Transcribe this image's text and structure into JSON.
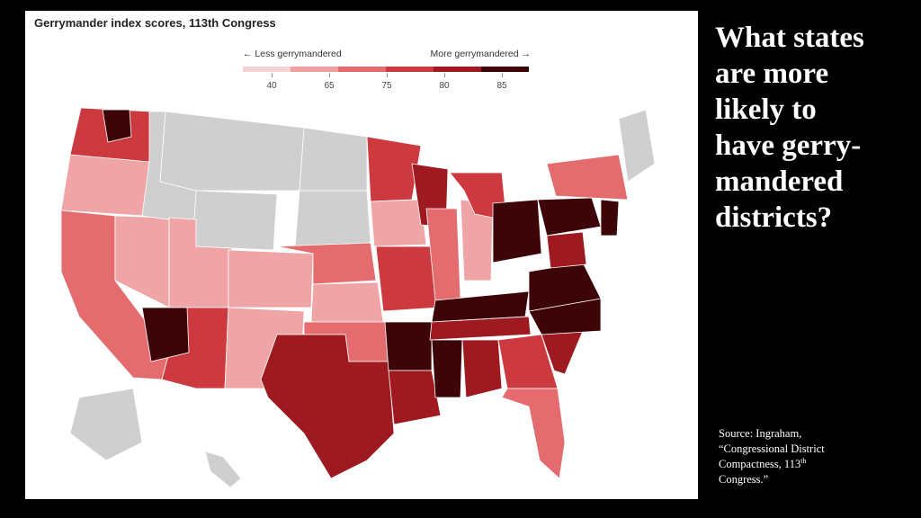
{
  "figure": {
    "title": "Gerrymander index scores, 113th Congress",
    "legend": {
      "less_label": "← Less gerrymandered",
      "more_label": "More gerrymandered →",
      "ticks": [
        "40",
        "65",
        "75",
        "80",
        "85"
      ],
      "colors": [
        "#f6d3d3",
        "#ef9fa0",
        "#e46b6e",
        "#cc3a3f",
        "#9e1a20",
        "#3d0508"
      ]
    },
    "map_colors": {
      "no_data": "#cfcfcf",
      "score_40_65": "#efa5a6",
      "score_65_75": "#e46b6e",
      "score_75_80": "#cc3a3f",
      "score_80_85": "#9e1a20",
      "score_85_plus": "#3d0508",
      "border": "#ffffff"
    }
  },
  "question": {
    "lines": [
      "What states",
      "are more",
      "likely to",
      "have gerry-",
      "mandered",
      "districts?"
    ]
  },
  "source": {
    "line1": "Source:  Ingraham,",
    "line2": "“Congressional District",
    "line3_pre": "Compactness, 113",
    "line3_sup": "th",
    "line4": "Congress.”"
  }
}
